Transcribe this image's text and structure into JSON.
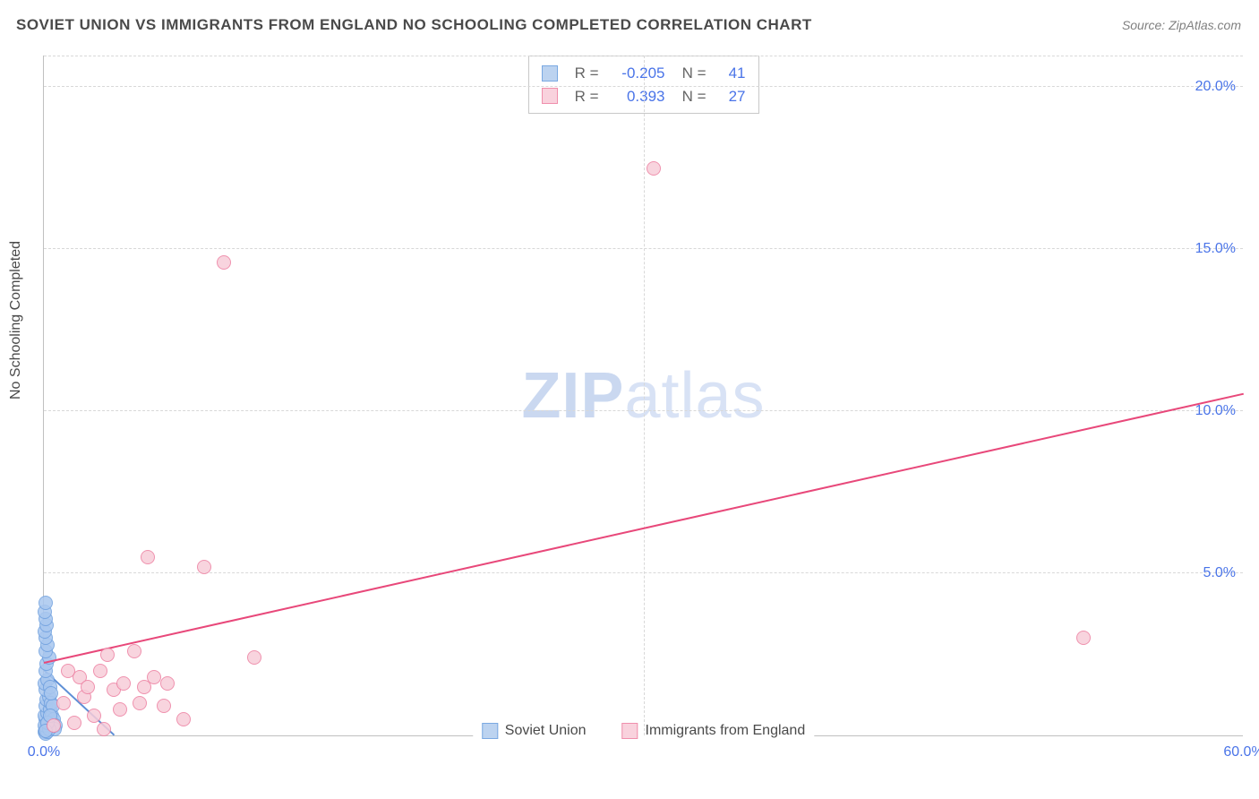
{
  "title": "SOVIET UNION VS IMMIGRANTS FROM ENGLAND NO SCHOOLING COMPLETED CORRELATION CHART",
  "source": "Source: ZipAtlas.com",
  "watermark": {
    "strong": "ZIP",
    "light": "atlas"
  },
  "y_axis_title": "No Schooling Completed",
  "chart": {
    "type": "scatter",
    "background_color": "#ffffff",
    "grid_color": "#d8d8d8",
    "axis_color": "#c0c0c0",
    "tick_label_color": "#4a74e8",
    "tick_fontsize": 16,
    "xlim": [
      0,
      60
    ],
    "ylim": [
      0,
      21
    ],
    "x_ticks": [
      {
        "v": 0,
        "label": "0.0%"
      },
      {
        "v": 60,
        "label": "60.0%"
      }
    ],
    "y_ticks": [
      {
        "v": 5,
        "label": "5.0%"
      },
      {
        "v": 10,
        "label": "10.0%"
      },
      {
        "v": 15,
        "label": "15.0%"
      },
      {
        "v": 20,
        "label": "20.0%"
      }
    ],
    "vgrid_x": [
      30
    ],
    "marker_size": 16,
    "marker_opacity": 0.85
  },
  "series": [
    {
      "name": "Soviet Union",
      "fill_color": "#a9c7ef",
      "stroke_color": "#6fa0df",
      "swatch_fill": "#bcd3f0",
      "swatch_border": "#7aa9e2",
      "trend_color": "#5e8fd6",
      "trend": {
        "x1": 0,
        "y1": 2.0,
        "x2": 3.5,
        "y2": 0
      },
      "points": [
        [
          0.05,
          0.1
        ],
        [
          0.1,
          0.05
        ],
        [
          0.1,
          0.2
        ],
        [
          0.15,
          0.3
        ],
        [
          0.2,
          0.1
        ],
        [
          0.1,
          0.5
        ],
        [
          0.3,
          0.4
        ],
        [
          0.05,
          0.6
        ],
        [
          0.2,
          0.7
        ],
        [
          0.1,
          0.9
        ],
        [
          0.3,
          0.8
        ],
        [
          0.4,
          0.3
        ],
        [
          0.15,
          1.1
        ],
        [
          0.25,
          1.2
        ],
        [
          0.1,
          1.4
        ],
        [
          0.35,
          1.0
        ],
        [
          0.05,
          1.6
        ],
        [
          0.2,
          1.7
        ],
        [
          0.3,
          1.5
        ],
        [
          0.1,
          2.0
        ],
        [
          0.15,
          2.2
        ],
        [
          0.25,
          2.4
        ],
        [
          0.1,
          2.6
        ],
        [
          0.2,
          2.8
        ],
        [
          0.1,
          3.0
        ],
        [
          0.05,
          3.2
        ],
        [
          0.15,
          3.4
        ],
        [
          0.1,
          3.6
        ],
        [
          0.05,
          3.8
        ],
        [
          0.1,
          4.1
        ],
        [
          0.05,
          0.3
        ],
        [
          0.4,
          0.6
        ],
        [
          0.5,
          0.5
        ],
        [
          0.6,
          0.3
        ],
        [
          0.45,
          0.9
        ],
        [
          0.55,
          0.2
        ],
        [
          0.35,
          1.3
        ],
        [
          0.25,
          0.2
        ],
        [
          0.2,
          0.4
        ],
        [
          0.3,
          0.6
        ],
        [
          0.1,
          0.15
        ]
      ]
    },
    {
      "name": "Immigrants from England",
      "fill_color": "#f7cdd9",
      "stroke_color": "#ed7fa1",
      "swatch_fill": "#f9d2dd",
      "swatch_border": "#f08fac",
      "trend_color": "#e8487a",
      "trend": {
        "x1": 0,
        "y1": 2.2,
        "x2": 60,
        "y2": 10.5
      },
      "points": [
        [
          0.5,
          0.3
        ],
        [
          1.5,
          0.4
        ],
        [
          2.5,
          0.6
        ],
        [
          3.0,
          0.2
        ],
        [
          1.0,
          1.0
        ],
        [
          2.0,
          1.2
        ],
        [
          3.5,
          1.4
        ],
        [
          4.0,
          1.6
        ],
        [
          1.8,
          1.8
        ],
        [
          2.8,
          2.0
        ],
        [
          5.0,
          1.5
        ],
        [
          5.5,
          1.8
        ],
        [
          6.2,
          1.6
        ],
        [
          3.2,
          2.5
        ],
        [
          4.5,
          2.6
        ],
        [
          2.2,
          1.5
        ],
        [
          1.2,
          2.0
        ],
        [
          6.0,
          0.9
        ],
        [
          7.0,
          0.5
        ],
        [
          10.5,
          2.4
        ],
        [
          5.2,
          5.5
        ],
        [
          8.0,
          5.2
        ],
        [
          9.0,
          14.6
        ],
        [
          30.5,
          17.5
        ],
        [
          52.0,
          3.0
        ],
        [
          4.8,
          1.0
        ],
        [
          3.8,
          0.8
        ]
      ]
    }
  ],
  "stats_box": {
    "rows": [
      {
        "swatch_fill": "#bcd3f0",
        "swatch_border": "#7aa9e2",
        "r_label": "R =",
        "r": "-0.205",
        "n_label": "N =",
        "n": "41"
      },
      {
        "swatch_fill": "#f9d2dd",
        "swatch_border": "#f08fac",
        "r_label": "R =",
        "r": "0.393",
        "n_label": "N =",
        "n": "27"
      }
    ]
  },
  "bottom_legend": [
    {
      "swatch_fill": "#bcd3f0",
      "swatch_border": "#7aa9e2",
      "label": "Soviet Union"
    },
    {
      "swatch_fill": "#f9d2dd",
      "swatch_border": "#f08fac",
      "label": "Immigrants from England"
    }
  ]
}
